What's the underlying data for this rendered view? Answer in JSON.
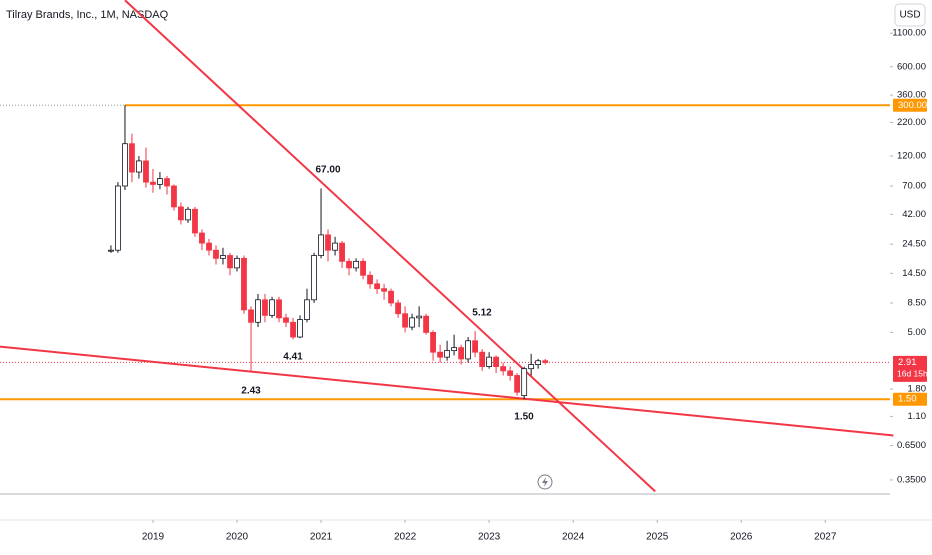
{
  "chart_data": {
    "type": "candlestick",
    "title": "Tilray Brands, Inc., 1M, NASDAQ",
    "currency": "USD",
    "log_scale": true,
    "ylim": [
      0.17,
      2000
    ],
    "yticks": [
      {
        "value": 1100,
        "label": "1100.00"
      },
      {
        "value": 600,
        "label": "600.00"
      },
      {
        "value": 360,
        "label": "360.00"
      },
      {
        "value": 220,
        "label": "220.00"
      },
      {
        "value": 120,
        "label": "120.00"
      },
      {
        "value": 70,
        "label": "70.00"
      },
      {
        "value": 42,
        "label": "42.00"
      },
      {
        "value": 24.5,
        "label": "24.50"
      },
      {
        "value": 14.5,
        "label": "14.50"
      },
      {
        "value": 8.5,
        "label": "8.50"
      },
      {
        "value": 5,
        "label": "5.00"
      },
      {
        "value": 1.8,
        "label": "1.80"
      },
      {
        "value": 1.1,
        "label": "1.10"
      },
      {
        "value": 0.65,
        "label": "0.6500"
      },
      {
        "value": 0.35,
        "label": "0.3500"
      }
    ],
    "xlim": [
      2017.18,
      2027.77
    ],
    "xticks": [
      2019,
      2020,
      2021,
      2022,
      2023,
      2024,
      2025,
      2026,
      2027
    ],
    "up_color": "#ffffff",
    "down_color": "#f23645",
    "x": [
      2018.5,
      2018.583,
      2018.667,
      2018.75,
      2018.833,
      2018.917,
      2019,
      2019.083,
      2019.167,
      2019.25,
      2019.333,
      2019.417,
      2019.5,
      2019.583,
      2019.667,
      2019.75,
      2019.833,
      2019.917,
      2020,
      2020.083,
      2020.167,
      2020.25,
      2020.333,
      2020.417,
      2020.5,
      2020.583,
      2020.667,
      2020.75,
      2020.833,
      2020.917,
      2021,
      2021.083,
      2021.167,
      2021.25,
      2021.333,
      2021.417,
      2021.5,
      2021.583,
      2021.667,
      2021.75,
      2021.833,
      2021.917,
      2022,
      2022.083,
      2022.167,
      2022.25,
      2022.333,
      2022.417,
      2022.5,
      2022.583,
      2022.667,
      2022.75,
      2022.833,
      2022.917,
      2023,
      2023.083,
      2023.167,
      2023.25,
      2023.333,
      2023.417,
      2023.5,
      2023.583,
      2023.667
    ],
    "open": [
      22,
      22,
      70,
      150,
      90,
      110,
      75,
      72,
      80,
      70,
      48,
      38,
      46,
      30,
      25,
      22,
      19,
      20,
      16,
      19,
      7.5,
      6,
      9,
      6.8,
      9,
      6.5,
      6,
      4.6,
      6.3,
      9,
      20,
      29,
      22,
      25,
      18,
      16,
      18,
      14,
      12,
      11,
      10.5,
      8.5,
      7,
      5.5,
      6.5,
      6.7,
      5,
      3.5,
      3.2,
      3.6,
      3.8,
      3.1,
      4.3,
      3.5,
      2.7,
      3.2,
      2.7,
      2.5,
      2.3,
      1.6,
      2.6,
      2.8,
      3
    ],
    "high": [
      24,
      75,
      300,
      180,
      120,
      140,
      95,
      90,
      84,
      72,
      52,
      48,
      48,
      32,
      27,
      24,
      23,
      21,
      20,
      20,
      8,
      10,
      10,
      9.5,
      9.5,
      7,
      6.5,
      6.8,
      11,
      21,
      67,
      32,
      28,
      26,
      19,
      19,
      19,
      15,
      13,
      12,
      11,
      9,
      8,
      7,
      8,
      7,
      5.2,
      4,
      4.3,
      4.8,
      4,
      4.6,
      5.12,
      3.7,
      3.5,
      3.3,
      2.9,
      2.7,
      2.4,
      2.7,
      3.4,
      3.1,
      3.1
    ],
    "low": [
      21,
      21,
      65,
      75,
      80,
      68,
      62,
      66,
      60,
      45,
      35,
      36,
      28,
      22,
      20,
      17,
      17,
      14,
      15,
      7,
      2.43,
      5.5,
      6,
      6.5,
      6,
      5.5,
      4.41,
      4.5,
      6,
      8.5,
      19,
      18,
      20,
      16,
      14,
      15,
      13,
      11,
      10,
      9,
      8,
      6.5,
      5,
      5.2,
      5.5,
      4.8,
      3,
      2.9,
      3,
      3.3,
      2.8,
      2.9,
      3.2,
      2.5,
      2.6,
      2.4,
      2.3,
      2.1,
      1.6,
      1.5,
      2.3,
      2.6,
      2.8
    ],
    "close": [
      22,
      70,
      150,
      90,
      110,
      75,
      72,
      80,
      70,
      48,
      38,
      46,
      30,
      25,
      22,
      19,
      20,
      16,
      19,
      7.5,
      6,
      9,
      6.8,
      9,
      6.5,
      6,
      4.6,
      6.3,
      9,
      20,
      29,
      22,
      25,
      18,
      16,
      18,
      14,
      12,
      11,
      10.5,
      8.5,
      7,
      5.5,
      6.5,
      6.7,
      5,
      3.5,
      3.2,
      3.6,
      3.8,
      3.1,
      4.3,
      3.5,
      2.7,
      3.2,
      2.7,
      2.5,
      2.3,
      1.7,
      2.6,
      2.8,
      3,
      2.91
    ],
    "trendlines": [
      {
        "color": "#f23645",
        "x": [
          2018.667,
          2024.976
        ],
        "y": [
          1990,
          0.285
        ]
      },
      {
        "color": "#f23645",
        "x": [
          2017.18,
          2027.81
        ],
        "y": [
          3.87,
          0.78
        ]
      }
    ],
    "price_labels": [
      {
        "value": 300,
        "label": "300.00",
        "color": "#ff9800"
      },
      {
        "value": 2.91,
        "label": "2.91",
        "sub": "16d 15h",
        "color": "#f23645"
      },
      {
        "value": 1.5,
        "label": "1.50",
        "color": "#ff9800"
      }
    ],
    "annotations": [
      "67.00",
      "5.12",
      "2.43",
      "4.41",
      "1.50"
    ]
  }
}
